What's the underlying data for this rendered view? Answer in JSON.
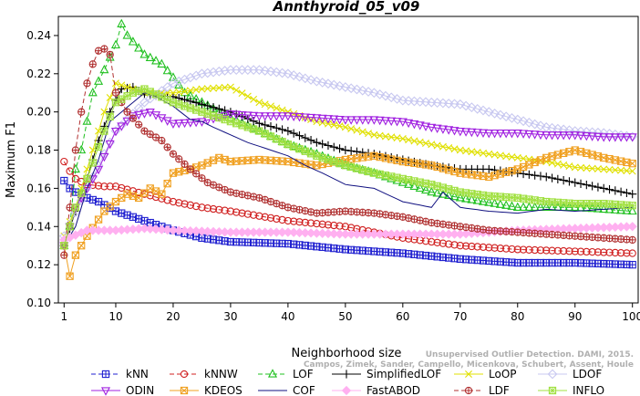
{
  "chart_data": {
    "type": "line",
    "title": "Annthyroid_05_v09",
    "xlabel": "Neighborhood size",
    "ylabel": "Maximum F1",
    "xlim": [
      0,
      101
    ],
    "ylim": [
      0.1,
      0.25
    ],
    "x_ticks": [
      1,
      10,
      20,
      30,
      40,
      50,
      60,
      70,
      80,
      90,
      100
    ],
    "y_ticks": [
      0.1,
      0.12,
      0.14,
      0.16,
      0.18,
      0.2,
      0.22,
      0.24
    ],
    "grid": false,
    "legend_position": "bottom",
    "credit_line1": "Unsupervised Outlier Detection. DAMI, 2015.",
    "credit_line2": "Campos, Zimek, Sander, Campello, Micenkova, Schubert, Assent, Houle",
    "series": [
      {
        "name": "kNN",
        "color": "#2020d0",
        "dash": "5,3",
        "marker": "square-plus",
        "points": [
          [
            1,
            0.164
          ],
          [
            2,
            0.16
          ],
          [
            3,
            0.158
          ],
          [
            4,
            0.157
          ],
          [
            5,
            0.155
          ],
          [
            7,
            0.153
          ],
          [
            10,
            0.148
          ],
          [
            15,
            0.143
          ],
          [
            20,
            0.138
          ],
          [
            25,
            0.134
          ],
          [
            30,
            0.132
          ],
          [
            40,
            0.131
          ],
          [
            50,
            0.128
          ],
          [
            60,
            0.126
          ],
          [
            70,
            0.123
          ],
          [
            80,
            0.121
          ],
          [
            90,
            0.121
          ],
          [
            100,
            0.12
          ]
        ]
      },
      {
        "name": "kNNW",
        "color": "#d02020",
        "dash": "5,3",
        "marker": "circle",
        "points": [
          [
            1,
            0.174
          ],
          [
            2,
            0.169
          ],
          [
            3,
            0.165
          ],
          [
            5,
            0.162
          ],
          [
            8,
            0.161
          ],
          [
            10,
            0.161
          ],
          [
            15,
            0.157
          ],
          [
            20,
            0.153
          ],
          [
            25,
            0.15
          ],
          [
            30,
            0.148
          ],
          [
            40,
            0.143
          ],
          [
            50,
            0.14
          ],
          [
            60,
            0.134
          ],
          [
            70,
            0.13
          ],
          [
            80,
            0.128
          ],
          [
            90,
            0.127
          ],
          [
            100,
            0.126
          ]
        ]
      },
      {
        "name": "LOF",
        "color": "#20c020",
        "dash": "5,3",
        "marker": "triangle",
        "points": [
          [
            1,
            0.13
          ],
          [
            2,
            0.14
          ],
          [
            3,
            0.17
          ],
          [
            4,
            0.18
          ],
          [
            5,
            0.195
          ],
          [
            6,
            0.21
          ],
          [
            8,
            0.222
          ],
          [
            10,
            0.235
          ],
          [
            11,
            0.246
          ],
          [
            12,
            0.24
          ],
          [
            15,
            0.23
          ],
          [
            18,
            0.225
          ],
          [
            20,
            0.218
          ],
          [
            22,
            0.21
          ],
          [
            25,
            0.205
          ],
          [
            28,
            0.2
          ],
          [
            30,
            0.197
          ],
          [
            35,
            0.19
          ],
          [
            40,
            0.183
          ],
          [
            45,
            0.178
          ],
          [
            50,
            0.172
          ],
          [
            55,
            0.168
          ],
          [
            60,
            0.163
          ],
          [
            65,
            0.158
          ],
          [
            70,
            0.155
          ],
          [
            80,
            0.15
          ],
          [
            90,
            0.15
          ],
          [
            100,
            0.148
          ]
        ]
      },
      {
        "name": "SimplifiedLOF",
        "color": "#000000",
        "dash": "",
        "marker": "plus",
        "points": [
          [
            1,
            0.13
          ],
          [
            3,
            0.148
          ],
          [
            5,
            0.165
          ],
          [
            7,
            0.185
          ],
          [
            9,
            0.2
          ],
          [
            11,
            0.212
          ],
          [
            13,
            0.213
          ],
          [
            15,
            0.209
          ],
          [
            20,
            0.208
          ],
          [
            25,
            0.204
          ],
          [
            30,
            0.2
          ],
          [
            35,
            0.194
          ],
          [
            40,
            0.19
          ],
          [
            45,
            0.184
          ],
          [
            50,
            0.18
          ],
          [
            55,
            0.178
          ],
          [
            60,
            0.175
          ],
          [
            65,
            0.172
          ],
          [
            70,
            0.17
          ],
          [
            75,
            0.17
          ],
          [
            80,
            0.168
          ],
          [
            85,
            0.166
          ],
          [
            90,
            0.163
          ],
          [
            95,
            0.16
          ],
          [
            100,
            0.157
          ]
        ]
      },
      {
        "name": "LoOP",
        "color": "#e0e000",
        "dash": "",
        "marker": "x",
        "points": [
          [
            1,
            0.135
          ],
          [
            3,
            0.15
          ],
          [
            5,
            0.17
          ],
          [
            8,
            0.2
          ],
          [
            10,
            0.215
          ],
          [
            15,
            0.21
          ],
          [
            20,
            0.21
          ],
          [
            25,
            0.212
          ],
          [
            30,
            0.213
          ],
          [
            35,
            0.205
          ],
          [
            40,
            0.2
          ],
          [
            45,
            0.195
          ],
          [
            50,
            0.192
          ],
          [
            55,
            0.188
          ],
          [
            60,
            0.186
          ],
          [
            65,
            0.183
          ],
          [
            70,
            0.18
          ],
          [
            75,
            0.178
          ],
          [
            80,
            0.176
          ],
          [
            85,
            0.174
          ],
          [
            90,
            0.171
          ],
          [
            95,
            0.17
          ],
          [
            100,
            0.169
          ]
        ]
      },
      {
        "name": "LDOF",
        "color": "#c8c8f0",
        "dash": "",
        "marker": "diamond",
        "points": [
          [
            1,
            0.135
          ],
          [
            5,
            0.16
          ],
          [
            10,
            0.19
          ],
          [
            15,
            0.205
          ],
          [
            20,
            0.215
          ],
          [
            25,
            0.22
          ],
          [
            30,
            0.222
          ],
          [
            35,
            0.222
          ],
          [
            40,
            0.22
          ],
          [
            45,
            0.216
          ],
          [
            50,
            0.213
          ],
          [
            55,
            0.21
          ],
          [
            60,
            0.206
          ],
          [
            65,
            0.205
          ],
          [
            70,
            0.204
          ],
          [
            75,
            0.2
          ],
          [
            80,
            0.196
          ],
          [
            85,
            0.192
          ],
          [
            90,
            0.19
          ],
          [
            95,
            0.189
          ],
          [
            100,
            0.187
          ]
        ]
      },
      {
        "name": "ODIN",
        "color": "#a020e0",
        "dash": "",
        "marker": "triangle-down",
        "points": [
          [
            1,
            0.13
          ],
          [
            3,
            0.15
          ],
          [
            5,
            0.16
          ],
          [
            7,
            0.17
          ],
          [
            10,
            0.19
          ],
          [
            13,
            0.198
          ],
          [
            16,
            0.2
          ],
          [
            20,
            0.194
          ],
          [
            25,
            0.195
          ],
          [
            30,
            0.199
          ],
          [
            35,
            0.198
          ],
          [
            40,
            0.198
          ],
          [
            45,
            0.197
          ],
          [
            50,
            0.196
          ],
          [
            55,
            0.196
          ],
          [
            60,
            0.195
          ],
          [
            65,
            0.192
          ],
          [
            70,
            0.19
          ],
          [
            75,
            0.189
          ],
          [
            80,
            0.189
          ],
          [
            85,
            0.188
          ],
          [
            90,
            0.188
          ],
          [
            95,
            0.187
          ],
          [
            100,
            0.187
          ]
        ]
      },
      {
        "name": "KDEOS",
        "color": "#f0a020",
        "dash": "",
        "marker": "square-x",
        "points": [
          [
            1,
            0.13
          ],
          [
            2,
            0.114
          ],
          [
            3,
            0.125
          ],
          [
            5,
            0.135
          ],
          [
            8,
            0.148
          ],
          [
            10,
            0.153
          ],
          [
            12,
            0.157
          ],
          [
            14,
            0.155
          ],
          [
            16,
            0.16
          ],
          [
            18,
            0.157
          ],
          [
            20,
            0.168
          ],
          [
            23,
            0.17
          ],
          [
            25,
            0.172
          ],
          [
            28,
            0.176
          ],
          [
            30,
            0.174
          ],
          [
            35,
            0.175
          ],
          [
            40,
            0.174
          ],
          [
            45,
            0.172
          ],
          [
            50,
            0.175
          ],
          [
            55,
            0.177
          ],
          [
            60,
            0.174
          ],
          [
            65,
            0.172
          ],
          [
            70,
            0.168
          ],
          [
            75,
            0.166
          ],
          [
            80,
            0.17
          ],
          [
            85,
            0.176
          ],
          [
            90,
            0.18
          ],
          [
            95,
            0.176
          ],
          [
            100,
            0.173
          ]
        ]
      },
      {
        "name": "COF",
        "color": "#101080",
        "dash": "",
        "marker": "asterisk",
        "points": [
          [
            1,
            0.13
          ],
          [
            3,
            0.14
          ],
          [
            5,
            0.16
          ],
          [
            7,
            0.175
          ],
          [
            9,
            0.195
          ],
          [
            11,
            0.2
          ],
          [
            13,
            0.205
          ],
          [
            15,
            0.21
          ],
          [
            17,
            0.208
          ],
          [
            20,
            0.203
          ],
          [
            23,
            0.196
          ],
          [
            25,
            0.195
          ],
          [
            27,
            0.192
          ],
          [
            30,
            0.188
          ],
          [
            33,
            0.184
          ],
          [
            36,
            0.181
          ],
          [
            40,
            0.177
          ],
          [
            43,
            0.172
          ],
          [
            46,
            0.168
          ],
          [
            50,
            0.162
          ],
          [
            55,
            0.16
          ],
          [
            60,
            0.153
          ],
          [
            65,
            0.15
          ],
          [
            67,
            0.158
          ],
          [
            70,
            0.15
          ],
          [
            75,
            0.148
          ],
          [
            80,
            0.147
          ],
          [
            85,
            0.149
          ],
          [
            90,
            0.148
          ],
          [
            95,
            0.149
          ],
          [
            100,
            0.15
          ]
        ]
      },
      {
        "name": "FastABOD",
        "color": "#ffb0f0",
        "dash": "",
        "marker": "diamond-filled",
        "points": [
          [
            1,
            0.133
          ],
          [
            5,
            0.138
          ],
          [
            10,
            0.138
          ],
          [
            15,
            0.139
          ],
          [
            20,
            0.138
          ],
          [
            30,
            0.137
          ],
          [
            40,
            0.137
          ],
          [
            50,
            0.136
          ],
          [
            60,
            0.136
          ],
          [
            70,
            0.136
          ],
          [
            80,
            0.138
          ],
          [
            90,
            0.139
          ],
          [
            100,
            0.14
          ]
        ]
      },
      {
        "name": "LDF",
        "color": "#b03030",
        "dash": "5,3",
        "marker": "circle-plus",
        "points": [
          [
            1,
            0.125
          ],
          [
            2,
            0.15
          ],
          [
            3,
            0.18
          ],
          [
            4,
            0.2
          ],
          [
            5,
            0.215
          ],
          [
            6,
            0.225
          ],
          [
            7,
            0.232
          ],
          [
            8,
            0.233
          ],
          [
            9,
            0.23
          ],
          [
            10,
            0.21
          ],
          [
            12,
            0.2
          ],
          [
            15,
            0.19
          ],
          [
            18,
            0.185
          ],
          [
            20,
            0.178
          ],
          [
            23,
            0.17
          ],
          [
            26,
            0.163
          ],
          [
            30,
            0.158
          ],
          [
            35,
            0.155
          ],
          [
            40,
            0.15
          ],
          [
            45,
            0.147
          ],
          [
            50,
            0.148
          ],
          [
            55,
            0.147
          ],
          [
            60,
            0.145
          ],
          [
            65,
            0.142
          ],
          [
            70,
            0.14
          ],
          [
            75,
            0.138
          ],
          [
            80,
            0.137
          ],
          [
            85,
            0.136
          ],
          [
            90,
            0.135
          ],
          [
            95,
            0.134
          ],
          [
            100,
            0.133
          ]
        ]
      },
      {
        "name": "INFLO",
        "color": "#a0e040",
        "dash": "",
        "marker": "square-star",
        "points": [
          [
            1,
            0.13
          ],
          [
            3,
            0.15
          ],
          [
            5,
            0.165
          ],
          [
            8,
            0.19
          ],
          [
            10,
            0.205
          ],
          [
            13,
            0.21
          ],
          [
            15,
            0.212
          ],
          [
            20,
            0.205
          ],
          [
            25,
            0.2
          ],
          [
            30,
            0.195
          ],
          [
            35,
            0.19
          ],
          [
            40,
            0.183
          ],
          [
            45,
            0.177
          ],
          [
            50,
            0.172
          ],
          [
            55,
            0.168
          ],
          [
            60,
            0.165
          ],
          [
            65,
            0.162
          ],
          [
            70,
            0.158
          ],
          [
            75,
            0.156
          ],
          [
            80,
            0.155
          ],
          [
            85,
            0.153
          ],
          [
            90,
            0.152
          ],
          [
            95,
            0.152
          ],
          [
            100,
            0.151
          ]
        ]
      }
    ]
  }
}
